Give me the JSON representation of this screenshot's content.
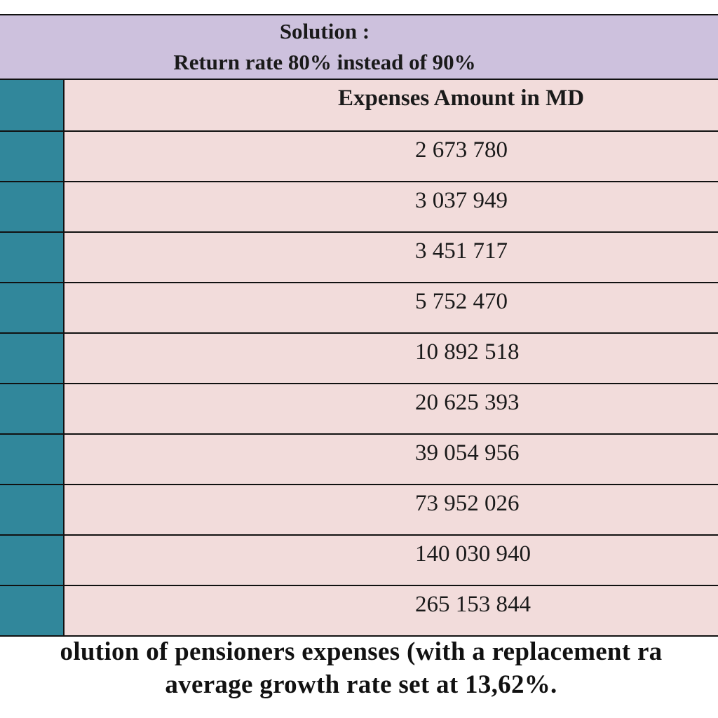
{
  "table": {
    "title_line1": "Solution :",
    "title_line2": "Return rate 80% instead of 90%",
    "column_header": "Expenses Amount in MD",
    "rows": [
      "2 673 780",
      "3 037 949",
      "3 451 717",
      "5 752 470",
      "10 892 518",
      "20 625 393",
      "39 054 956",
      "73 952 026",
      "140 030 940",
      "265 153 844"
    ],
    "colors": {
      "title_bg": "#cdc1dd",
      "first_column": "#31879b",
      "cells": "#f2dcdb"
    }
  },
  "caption": {
    "line1": "olution of pensioners expenses (with a replacement ra",
    "line2": "average growth rate set at 13,62%."
  }
}
